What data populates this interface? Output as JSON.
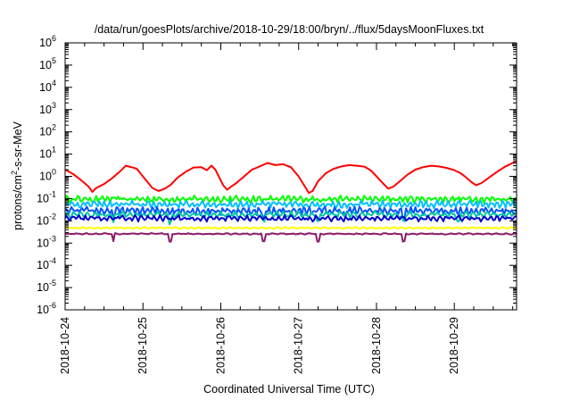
{
  "chart_data": {
    "type": "line",
    "title": "/data/run/goesPlots/archive/2018-10-29/18:00/bryn/../flux/5daysMoonFluxes.txt",
    "xlabel": "Coordinated Universal Time (UTC)",
    "ylabel": {
      "base": "protons/cm",
      "sup": "2",
      "rest": "-s-sr-MeV"
    },
    "yscale": "log",
    "ylim": [
      1e-06,
      1000000.0
    ],
    "yticks": [
      {
        "value": 1e-06,
        "base": "10",
        "exp": "-6"
      },
      {
        "value": 1e-05,
        "base": "10",
        "exp": "-5"
      },
      {
        "value": 0.0001,
        "base": "10",
        "exp": "-4"
      },
      {
        "value": 0.001,
        "base": "10",
        "exp": "-3"
      },
      {
        "value": 0.01,
        "base": "10",
        "exp": "-2"
      },
      {
        "value": 0.1,
        "base": "10",
        "exp": "-1"
      },
      {
        "value": 1,
        "base": "10",
        "exp": "0"
      },
      {
        "value": 10,
        "base": "10",
        "exp": "1"
      },
      {
        "value": 100,
        "base": "10",
        "exp": "2"
      },
      {
        "value": 1000,
        "base": "10",
        "exp": "3"
      },
      {
        "value": 10000,
        "base": "10",
        "exp": "4"
      },
      {
        "value": 100000,
        "base": "10",
        "exp": "5"
      },
      {
        "value": 1000000,
        "base": "10",
        "exp": "6"
      }
    ],
    "xrange_days": [
      0,
      5.8
    ],
    "xticks": [
      {
        "label": "2018-10-24",
        "day": 0
      },
      {
        "label": "2018-10-25",
        "day": 1
      },
      {
        "label": "2018-10-26",
        "day": 2
      },
      {
        "label": "2018-10-27",
        "day": 3
      },
      {
        "label": "2018-10-28",
        "day": 4
      },
      {
        "label": "2018-10-29",
        "day": 5
      }
    ],
    "grid": false,
    "legend": "none",
    "series": [
      {
        "color": "#ff0000",
        "points": [
          [
            0,
            2.0
          ],
          [
            0.1,
            1.3
          ],
          [
            0.2,
            0.7
          ],
          [
            0.3,
            0.35
          ],
          [
            0.35,
            0.2
          ],
          [
            0.4,
            0.3
          ],
          [
            0.5,
            0.45
          ],
          [
            0.6,
            0.8
          ],
          [
            0.7,
            1.6
          ],
          [
            0.78,
            3.0
          ],
          [
            0.85,
            2.6
          ],
          [
            0.92,
            2.2
          ],
          [
            0.98,
            1.2
          ],
          [
            1.05,
            0.6
          ],
          [
            1.12,
            0.3
          ],
          [
            1.2,
            0.22
          ],
          [
            1.28,
            0.28
          ],
          [
            1.35,
            0.4
          ],
          [
            1.45,
            0.9
          ],
          [
            1.55,
            1.6
          ],
          [
            1.65,
            2.5
          ],
          [
            1.75,
            2.6
          ],
          [
            1.82,
            1.9
          ],
          [
            1.88,
            3.0
          ],
          [
            1.93,
            2.0
          ],
          [
            1.98,
            0.9
          ],
          [
            2.03,
            0.4
          ],
          [
            2.08,
            0.25
          ],
          [
            2.12,
            0.32
          ],
          [
            2.2,
            0.5
          ],
          [
            2.3,
            1.0
          ],
          [
            2.4,
            2.0
          ],
          [
            2.5,
            2.8
          ],
          [
            2.6,
            4.0
          ],
          [
            2.7,
            3.2
          ],
          [
            2.8,
            3.5
          ],
          [
            2.9,
            2.6
          ],
          [
            3.0,
            1.0
          ],
          [
            3.08,
            0.35
          ],
          [
            3.13,
            0.18
          ],
          [
            3.18,
            0.22
          ],
          [
            3.25,
            0.6
          ],
          [
            3.35,
            1.4
          ],
          [
            3.45,
            2.2
          ],
          [
            3.55,
            2.8
          ],
          [
            3.65,
            3.2
          ],
          [
            3.75,
            3.0
          ],
          [
            3.85,
            2.7
          ],
          [
            3.93,
            1.8
          ],
          [
            4.0,
            1.0
          ],
          [
            4.08,
            0.5
          ],
          [
            4.15,
            0.28
          ],
          [
            4.22,
            0.35
          ],
          [
            4.3,
            0.6
          ],
          [
            4.4,
            1.2
          ],
          [
            4.5,
            2.0
          ],
          [
            4.6,
            2.6
          ],
          [
            4.7,
            3.0
          ],
          [
            4.8,
            2.8
          ],
          [
            4.9,
            2.4
          ],
          [
            5.0,
            1.9
          ],
          [
            5.08,
            1.4
          ],
          [
            5.15,
            0.9
          ],
          [
            5.22,
            0.55
          ],
          [
            5.28,
            0.4
          ],
          [
            5.35,
            0.5
          ],
          [
            5.45,
            0.9
          ],
          [
            5.55,
            1.6
          ],
          [
            5.65,
            2.7
          ],
          [
            5.75,
            4.0
          ],
          [
            5.8,
            4.5
          ]
        ]
      },
      {
        "color": "#00ff00",
        "base": 0.095,
        "amp": 0.3,
        "period": 0.075,
        "dips": []
      },
      {
        "color": "#00bfff",
        "base": 0.055,
        "amp": 0.3,
        "period": 0.07,
        "dips": []
      },
      {
        "color": "#0055ff",
        "base": 0.028,
        "amp": 0.35,
        "period": 0.065,
        "dips": [
          0.62,
          2.55,
          3.6,
          4.35
        ]
      },
      {
        "color": "#00c8a0",
        "base": 0.019,
        "amp": 0.25,
        "period": 0.09,
        "dips": [
          0.62,
          1.35,
          2.55,
          3.25,
          4.35,
          5.05
        ]
      },
      {
        "color": "#0000d0",
        "base": 0.013,
        "amp": 0.25,
        "period": 0.08,
        "dips": []
      },
      {
        "color": "#ffff00",
        "base": 0.0048,
        "amp": 0.08,
        "period": 0.1,
        "dips": []
      },
      {
        "color": "#8b1a6b",
        "base": 0.0026,
        "amp": 0.06,
        "period": 0.12,
        "dips": [
          0.62,
          1.35,
          2.55,
          3.25,
          4.35
        ]
      }
    ]
  }
}
